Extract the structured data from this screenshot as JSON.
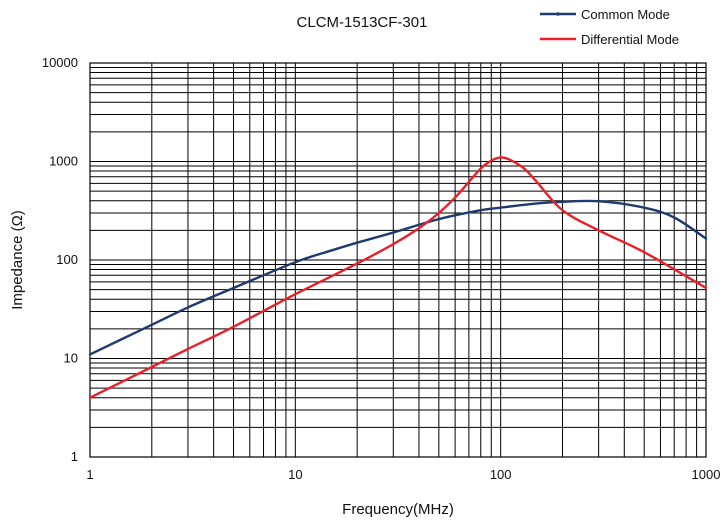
{
  "chart_data": {
    "type": "line",
    "title": "CLCM-1513CF-301",
    "xlabel": "Frequency(MHz)",
    "ylabel": "Impedance (Ω)",
    "x_scale": "log",
    "y_scale": "log",
    "xlim": [
      1,
      1000
    ],
    "ylim": [
      1,
      10000
    ],
    "x_tick_labels": [
      "1",
      "10",
      "100",
      "1000"
    ],
    "y_tick_labels": [
      "1",
      "10",
      "100",
      "1000",
      "10000"
    ],
    "grid": true,
    "legend_position": "top-right",
    "series": [
      {
        "name": "Common Mode",
        "color": "#1f3a6e",
        "x": [
          1,
          2,
          3,
          5,
          10,
          15,
          20,
          30,
          50,
          80,
          100,
          150,
          200,
          300,
          500,
          700,
          1000
        ],
        "y": [
          11,
          22,
          33,
          52,
          95,
          125,
          150,
          190,
          260,
          320,
          340,
          375,
          390,
          395,
          340,
          270,
          165
        ]
      },
      {
        "name": "Differential Mode",
        "color": "#e8202a",
        "x": [
          1,
          2,
          3,
          5,
          10,
          20,
          30,
          40,
          50,
          60,
          70,
          80,
          90,
          100,
          110,
          130,
          150,
          200,
          300,
          500,
          1000
        ],
        "y": [
          4,
          8.2,
          12.5,
          21,
          45,
          92,
          145,
          210,
          300,
          430,
          620,
          850,
          1020,
          1100,
          1050,
          850,
          620,
          320,
          200,
          120,
          52
        ]
      }
    ]
  }
}
